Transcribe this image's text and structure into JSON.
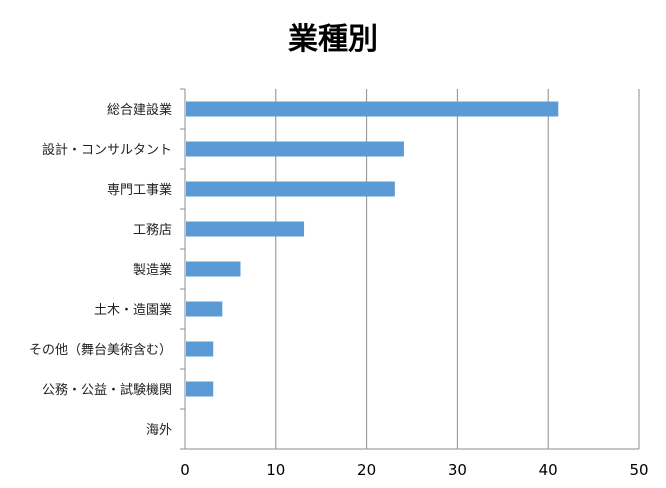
{
  "chart_data": {
    "type": "bar",
    "orientation": "horizontal",
    "title": "業種別",
    "categories": [
      "総合建設業",
      "設計・コンサルタント",
      "専門工事業",
      "工務店",
      "製造業",
      "土木・造園業",
      "その他（舞台美術含む）",
      "公務・公益・試験機関",
      "海外"
    ],
    "values": [
      41,
      24,
      23,
      13,
      6,
      4,
      3,
      3,
      0
    ],
    "xlim": [
      0,
      50
    ],
    "xticks": [
      "0",
      "10",
      "20",
      "30",
      "40",
      "50"
    ],
    "grid": true,
    "legend": "none",
    "bar_color": "#5b9bd5"
  }
}
